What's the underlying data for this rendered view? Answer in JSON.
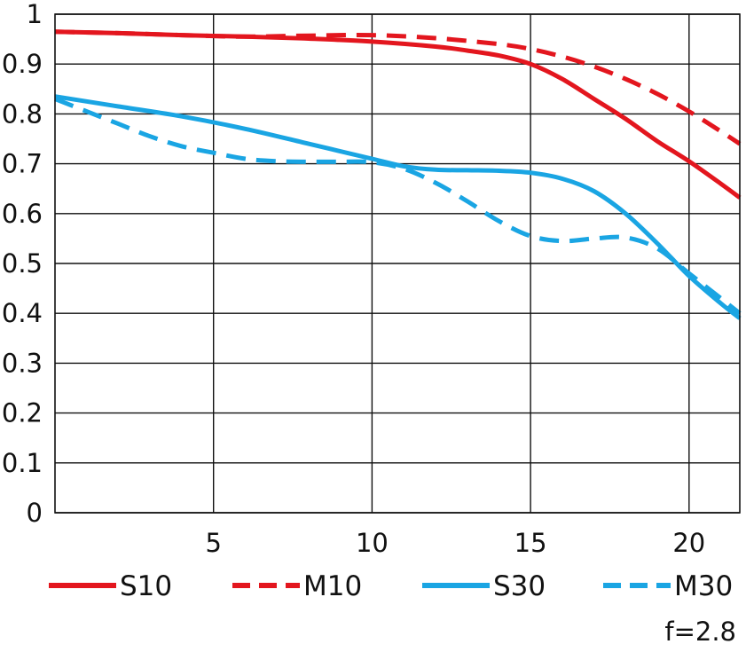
{
  "chart_data": {
    "type": "line",
    "title": "",
    "xlabel": "",
    "ylabel": "",
    "xlim": [
      0,
      21.6
    ],
    "ylim": [
      0,
      1
    ],
    "x_ticks": [
      5,
      10,
      15,
      20
    ],
    "y_ticks": [
      0,
      0.1,
      0.2,
      0.3,
      0.4,
      0.5,
      0.6,
      0.7,
      0.8,
      0.9,
      1
    ],
    "x_tick_labels": [
      "5",
      "10",
      "15",
      "20"
    ],
    "y_tick_labels": [
      "0",
      "0.1",
      "0.2",
      "0.3",
      "0.4",
      "0.5",
      "0.6",
      "0.7",
      "0.8",
      "0.9",
      "1"
    ],
    "grid": true,
    "legend_position": "bottom",
    "annotation": "f=2.8",
    "series": [
      {
        "name": "S10",
        "color": "#e3161e",
        "dash": "solid",
        "x": [
          0,
          2,
          4,
          6,
          8,
          10,
          12,
          13,
          14,
          15,
          16,
          17,
          18,
          19,
          20,
          21,
          21.6
        ],
        "y": [
          0.965,
          0.962,
          0.958,
          0.955,
          0.951,
          0.945,
          0.935,
          0.927,
          0.917,
          0.9,
          0.87,
          0.83,
          0.79,
          0.745,
          0.705,
          0.66,
          0.632
        ]
      },
      {
        "name": "M10",
        "color": "#e3161e",
        "dash": "dashed",
        "x": [
          0,
          2,
          4,
          6,
          8,
          10,
          12,
          14,
          15,
          16,
          17,
          18,
          19,
          20,
          21,
          21.6
        ],
        "y": [
          0.965,
          0.962,
          0.958,
          0.955,
          0.957,
          0.958,
          0.952,
          0.94,
          0.93,
          0.915,
          0.895,
          0.87,
          0.84,
          0.805,
          0.765,
          0.74
        ]
      },
      {
        "name": "S30",
        "color": "#1aa5e3",
        "dash": "solid",
        "x": [
          0,
          2,
          4,
          6,
          8,
          10,
          11,
          12,
          13,
          14,
          15,
          16,
          17,
          18,
          19,
          20,
          21,
          21.6
        ],
        "y": [
          0.835,
          0.815,
          0.795,
          0.77,
          0.74,
          0.71,
          0.695,
          0.688,
          0.687,
          0.686,
          0.682,
          0.67,
          0.645,
          0.6,
          0.54,
          0.475,
          0.42,
          0.39
        ]
      },
      {
        "name": "M30",
        "color": "#1aa5e3",
        "dash": "dashed",
        "x": [
          0,
          1,
          2,
          3,
          4,
          5,
          6,
          7,
          8,
          9,
          10,
          11,
          12,
          13,
          14,
          15,
          16,
          17,
          18,
          19,
          20,
          21,
          21.6
        ],
        "y": [
          0.83,
          0.805,
          0.78,
          0.755,
          0.735,
          0.722,
          0.71,
          0.705,
          0.704,
          0.704,
          0.703,
          0.69,
          0.662,
          0.625,
          0.585,
          0.555,
          0.545,
          0.55,
          0.552,
          0.53,
          0.48,
          0.43,
          0.4
        ]
      }
    ]
  }
}
